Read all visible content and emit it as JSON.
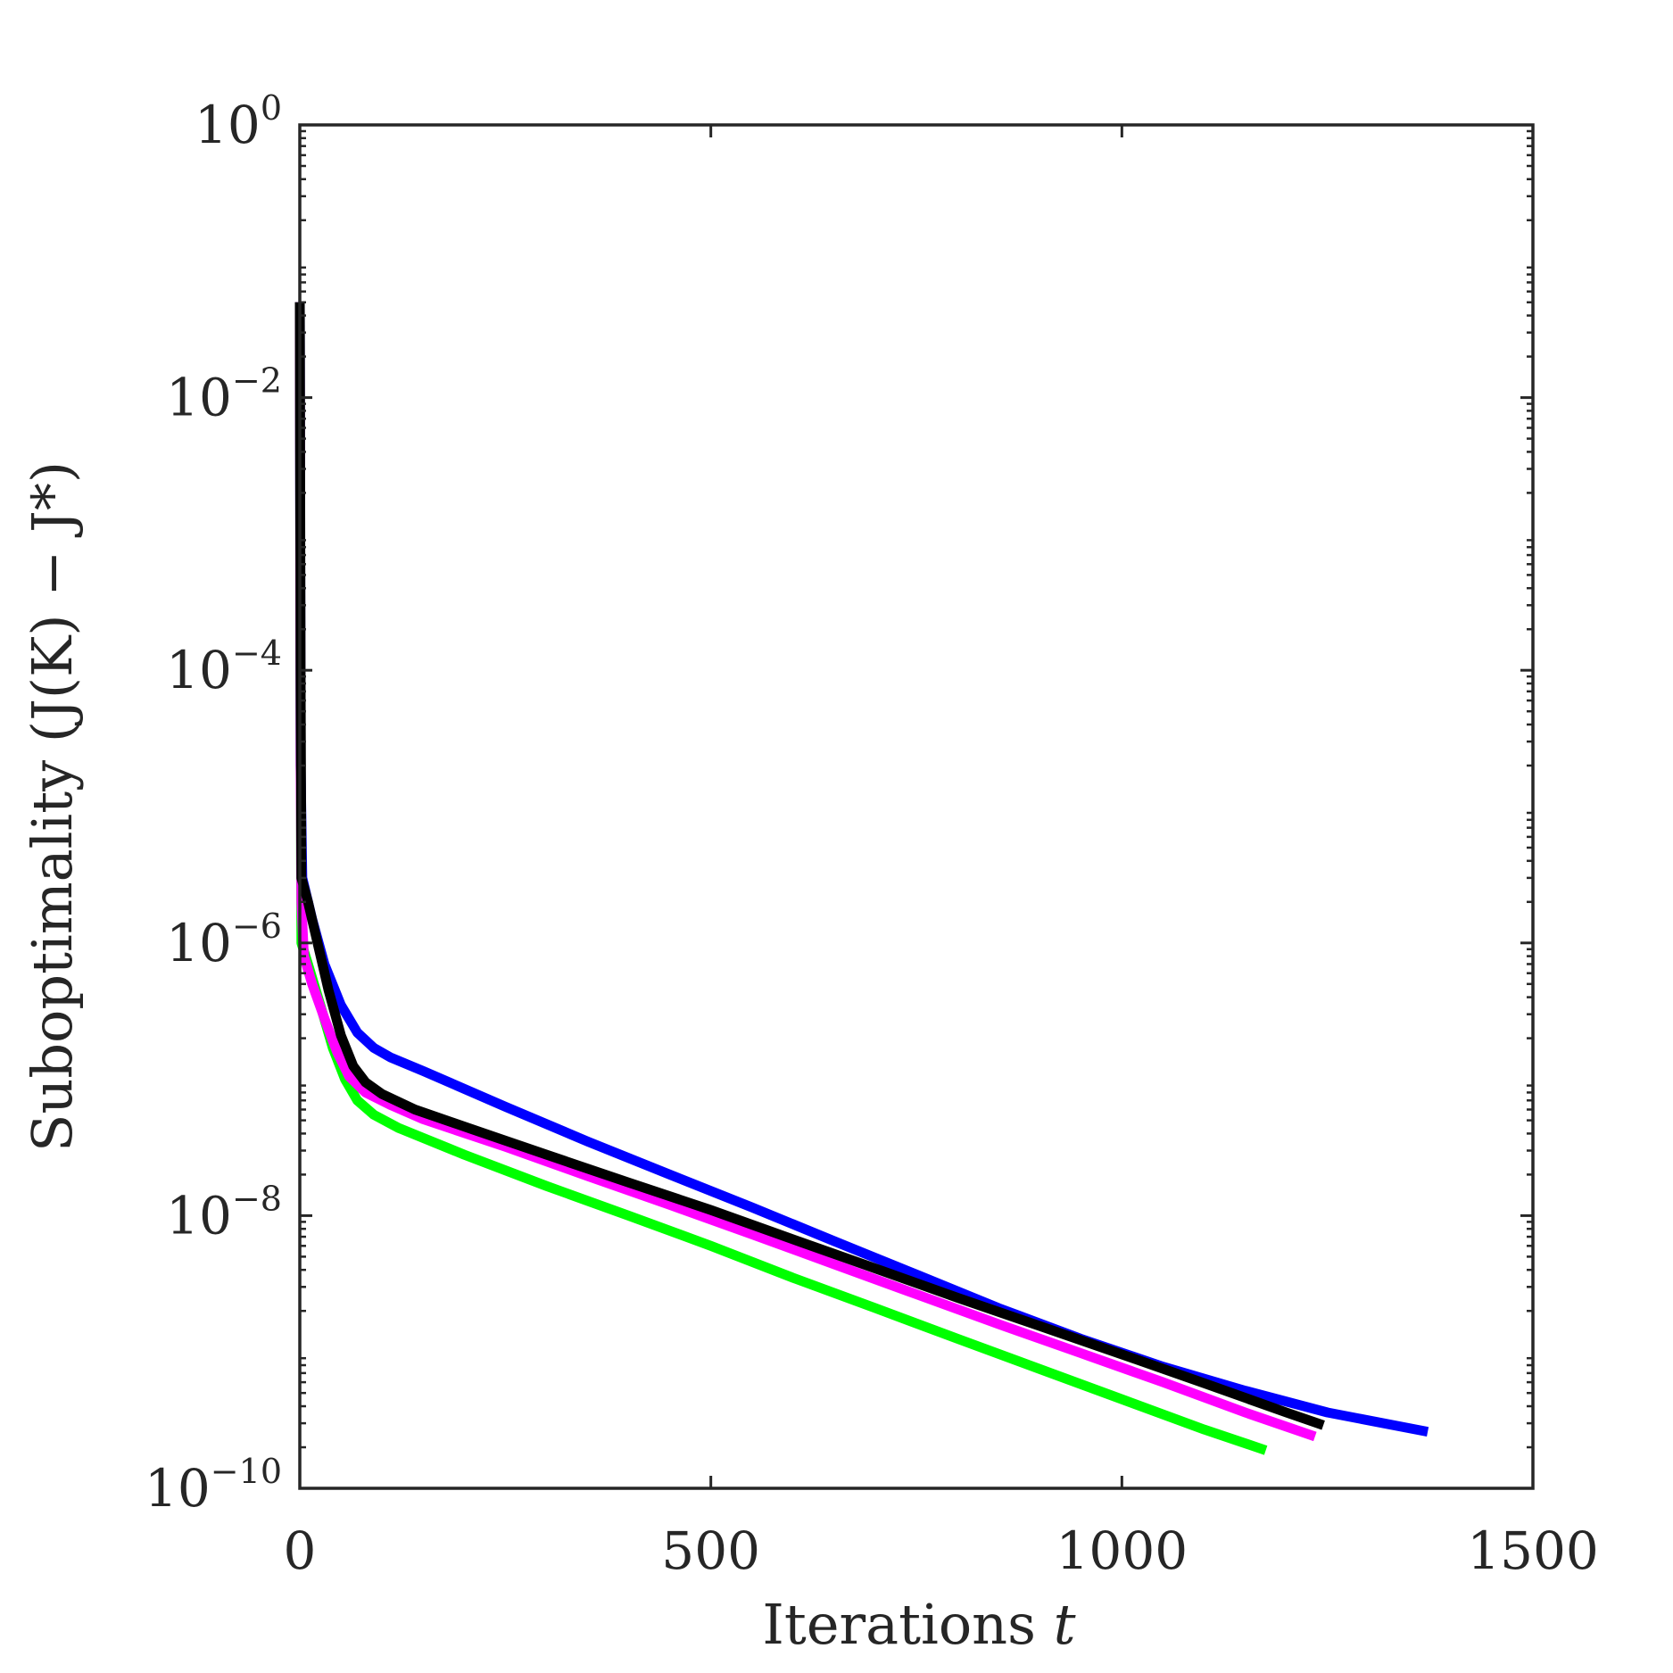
{
  "chart_data": {
    "type": "line",
    "xlabel": "Iterations",
    "xlabel_var": "t",
    "ylabel": "Suboptimality (J(K) − J*)",
    "xlim": [
      0,
      1500
    ],
    "ylim": [
      1e-10,
      1
    ],
    "yscale": "log",
    "xticks": [
      0,
      500,
      1000,
      1500
    ],
    "xtick_labels": [
      "0",
      "500",
      "1000",
      "1500"
    ],
    "yticks": [
      1e-10,
      1e-08,
      1e-06,
      0.0001,
      0.01,
      1
    ],
    "ytick_labels": [
      {
        "base": "10",
        "exp": "−10"
      },
      {
        "base": "10",
        "exp": "−8"
      },
      {
        "base": "10",
        "exp": "−6"
      },
      {
        "base": "10",
        "exp": "−4"
      },
      {
        "base": "10",
        "exp": "−2"
      },
      {
        "base": "10",
        "exp": "0"
      }
    ],
    "grid": false,
    "legend": "none",
    "series": [
      {
        "color": "#0000ff",
        "points": [
          [
            0,
            0.05
          ],
          [
            1,
            2e-05
          ],
          [
            3,
            3e-06
          ],
          [
            15,
            1.5e-06
          ],
          [
            30,
            7e-07
          ],
          [
            50,
            3.5e-07
          ],
          [
            70,
            2.2e-07
          ],
          [
            90,
            1.7e-07
          ],
          [
            110,
            1.45e-07
          ],
          [
            150,
            1.15e-07
          ],
          [
            250,
            6.3e-08
          ],
          [
            350,
            3.5e-08
          ],
          [
            450,
            2e-08
          ],
          [
            550,
            1.15e-08
          ],
          [
            650,
            6.5e-09
          ],
          [
            750,
            3.7e-09
          ],
          [
            850,
            2.1e-09
          ],
          [
            950,
            1.25e-09
          ],
          [
            1050,
            7.8e-10
          ],
          [
            1150,
            5.2e-10
          ],
          [
            1250,
            3.6e-10
          ],
          [
            1372,
            2.6e-10
          ]
        ]
      },
      {
        "color": "#00ff00",
        "points": [
          [
            0,
            0.05
          ],
          [
            1,
            2e-05
          ],
          [
            2,
            1e-06
          ],
          [
            10,
            7e-07
          ],
          [
            25,
            3.5e-07
          ],
          [
            40,
            1.7e-07
          ],
          [
            55,
            1e-07
          ],
          [
            70,
            7e-08
          ],
          [
            90,
            5.5e-08
          ],
          [
            120,
            4.4e-08
          ],
          [
            200,
            2.8e-08
          ],
          [
            300,
            1.65e-08
          ],
          [
            400,
            1e-08
          ],
          [
            500,
            6e-09
          ],
          [
            600,
            3.5e-09
          ],
          [
            700,
            2.1e-09
          ],
          [
            800,
            1.25e-09
          ],
          [
            900,
            7.5e-10
          ],
          [
            1000,
            4.5e-10
          ],
          [
            1100,
            2.7e-10
          ],
          [
            1175,
            1.9e-10
          ]
        ]
      },
      {
        "color": "#ff00ff",
        "points": [
          [
            0,
            0.05
          ],
          [
            1,
            2e-05
          ],
          [
            2,
            2e-06
          ],
          [
            5,
            8e-07
          ],
          [
            15,
            5e-07
          ],
          [
            30,
            2.8e-07
          ],
          [
            45,
            1.6e-07
          ],
          [
            60,
            1.05e-07
          ],
          [
            80,
            8e-08
          ],
          [
            110,
            6.5e-08
          ],
          [
            150,
            5.1e-08
          ],
          [
            250,
            3.2e-08
          ],
          [
            350,
            1.95e-08
          ],
          [
            450,
            1.2e-08
          ],
          [
            550,
            7.3e-09
          ],
          [
            650,
            4.4e-09
          ],
          [
            750,
            2.65e-09
          ],
          [
            850,
            1.6e-09
          ],
          [
            950,
            9.8e-10
          ],
          [
            1050,
            6e-10
          ],
          [
            1150,
            3.6e-10
          ],
          [
            1235,
            2.4e-10
          ]
        ]
      },
      {
        "color": "#000000",
        "points": [
          [
            0,
            0.05
          ],
          [
            1,
            0.0001
          ],
          [
            2,
            3e-06
          ],
          [
            10,
            2e-06
          ],
          [
            20,
            1.1e-06
          ],
          [
            35,
            4.5e-07
          ],
          [
            50,
            2.1e-07
          ],
          [
            65,
            1.25e-07
          ],
          [
            80,
            9.5e-08
          ],
          [
            100,
            7.8e-08
          ],
          [
            140,
            6e-08
          ],
          [
            200,
            4.5e-08
          ],
          [
            300,
            2.8e-08
          ],
          [
            400,
            1.75e-08
          ],
          [
            500,
            1.1e-08
          ],
          [
            600,
            6.7e-09
          ],
          [
            700,
            4.1e-09
          ],
          [
            800,
            2.5e-09
          ],
          [
            900,
            1.55e-09
          ],
          [
            1000,
            9.6e-10
          ],
          [
            1100,
            5.9e-10
          ],
          [
            1200,
            3.6e-10
          ],
          [
            1245,
            2.9e-10
          ]
        ]
      }
    ]
  }
}
